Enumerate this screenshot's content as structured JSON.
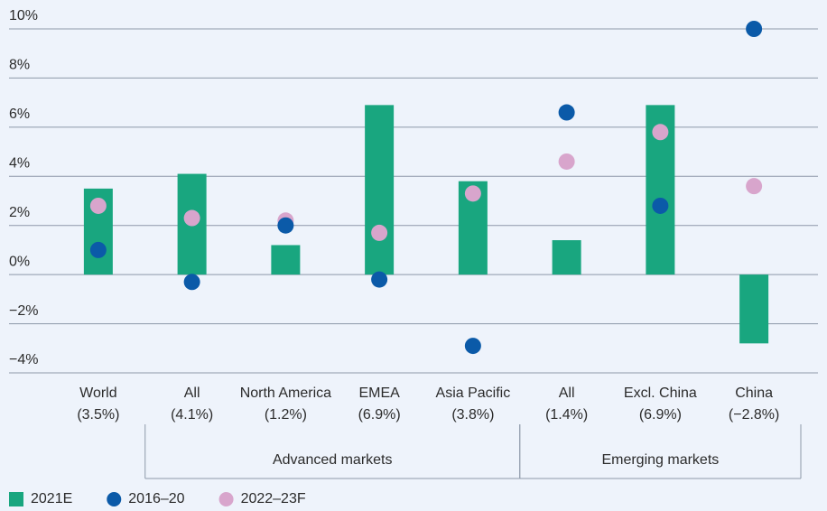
{
  "chart_data": {
    "type": "bar",
    "categories": [
      "World",
      "All",
      "North America",
      "EMEA",
      "Asia Pacific",
      "All",
      "Excl. China",
      "China"
    ],
    "groups": [
      "Advanced markets",
      "Emerging markets"
    ],
    "series": [
      {
        "name": "2021E",
        "type": "bar",
        "color": "#19a67f",
        "values": [
          3.5,
          4.1,
          1.2,
          6.9,
          3.8,
          1.4,
          6.9,
          -2.8
        ],
        "value_labels": [
          "(3.5%)",
          "(4.1%)",
          "(1.2%)",
          "(6.9%)",
          "(3.8%)",
          "(1.4%)",
          "(6.9%)",
          "(−2.8%)"
        ]
      },
      {
        "name": "2016–20",
        "type": "scatter",
        "color": "#0b5aa8",
        "values": [
          1.0,
          -0.3,
          2.0,
          -0.2,
          -2.9,
          6.6,
          2.8,
          10.0
        ]
      },
      {
        "name": "2022–23F",
        "type": "scatter",
        "color": "#d8a5cc",
        "values": [
          2.8,
          2.3,
          2.2,
          1.7,
          3.3,
          4.6,
          5.8,
          3.6
        ]
      }
    ],
    "ylim": [
      -4,
      10
    ],
    "yticks": [
      {
        "value": -4,
        "label": "−4%"
      },
      {
        "value": -2,
        "label": "−2%"
      },
      {
        "value": 0,
        "label": "0%"
      },
      {
        "value": 2,
        "label": "2%"
      },
      {
        "value": 4,
        "label": "4%"
      },
      {
        "value": 6,
        "label": "6%"
      },
      {
        "value": 8,
        "label": "8%"
      },
      {
        "value": 10,
        "label": "10%"
      }
    ],
    "grid": true
  }
}
